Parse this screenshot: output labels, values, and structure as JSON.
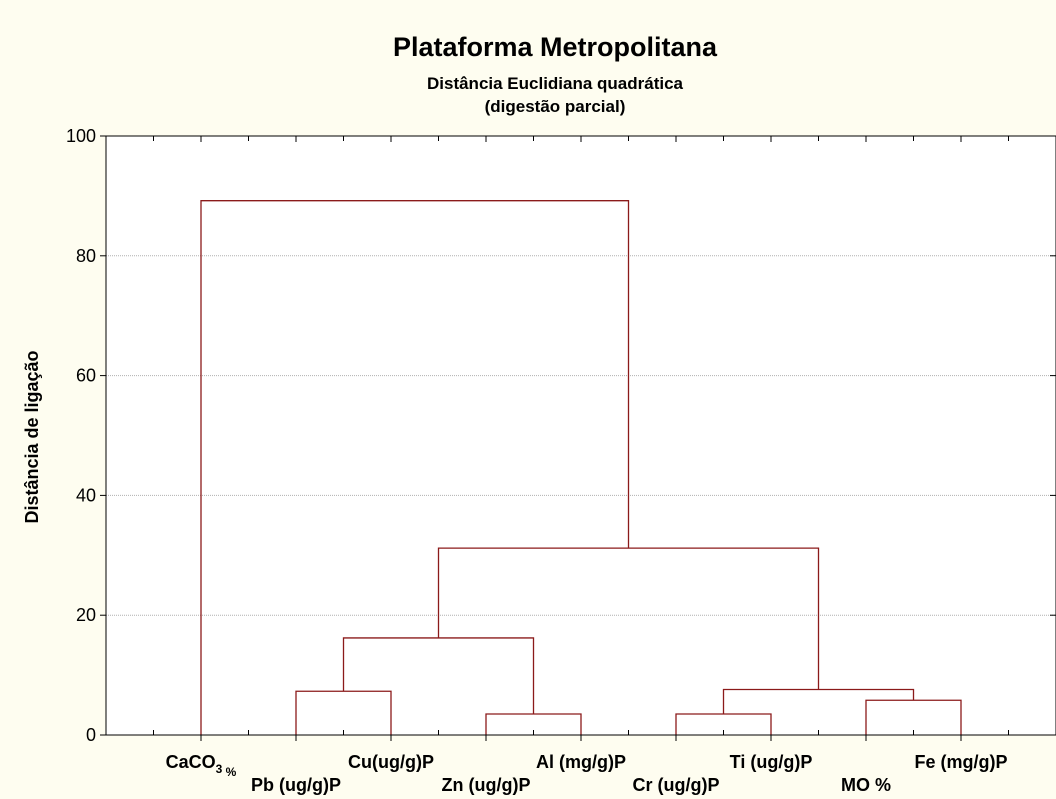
{
  "chart_data": {
    "type": "dendrogram",
    "title": "Plataforma  Metropolitana",
    "subtitle_lines": [
      "Distância Euclidiana quadrática",
      "(digestão parcial)"
    ],
    "ylabel": "Distância de ligação",
    "xlabel": "",
    "ylim": [
      0,
      100
    ],
    "yticks": [
      0,
      20,
      40,
      60,
      80,
      100
    ],
    "grid": true,
    "leaves": [
      {
        "label": "CaCO",
        "sub": "3",
        "suffix": " %",
        "row": "upper"
      },
      {
        "label": "Pb (ug/g)P",
        "row": "lower"
      },
      {
        "label": "Cu(ug/g)P",
        "row": "upper"
      },
      {
        "label": "Zn (ug/g)P",
        "row": "lower"
      },
      {
        "label": "Al (mg/g)P",
        "row": "upper"
      },
      {
        "label": "Cr (ug/g)P",
        "row": "lower"
      },
      {
        "label": "Ti (ug/g)P",
        "row": "upper"
      },
      {
        "label": "MO %",
        "row": "lower"
      },
      {
        "label": "Fe (mg/g)P",
        "row": "upper"
      }
    ],
    "merges": [
      {
        "left": 1,
        "right": 2,
        "height": 7.3
      },
      {
        "left": 3,
        "right": 4,
        "height": 3.5
      },
      {
        "left": 5,
        "right": 6,
        "height": 3.5
      },
      {
        "left": 7,
        "right": 8,
        "height": 5.8
      },
      {
        "left": "m0",
        "right": "m1",
        "height": 16.2
      },
      {
        "left": "m2",
        "right": "m3",
        "height": 7.6
      },
      {
        "left": "m4",
        "right": "m5",
        "height": 31.2
      },
      {
        "left": 0,
        "right": "m6",
        "height": 89.2
      }
    ],
    "colors": {
      "background": "#fefdf0",
      "plot_area": "#ffffff",
      "link": "#8b1a1a",
      "grid": "#b0b0b0",
      "axis": "#000000"
    }
  }
}
